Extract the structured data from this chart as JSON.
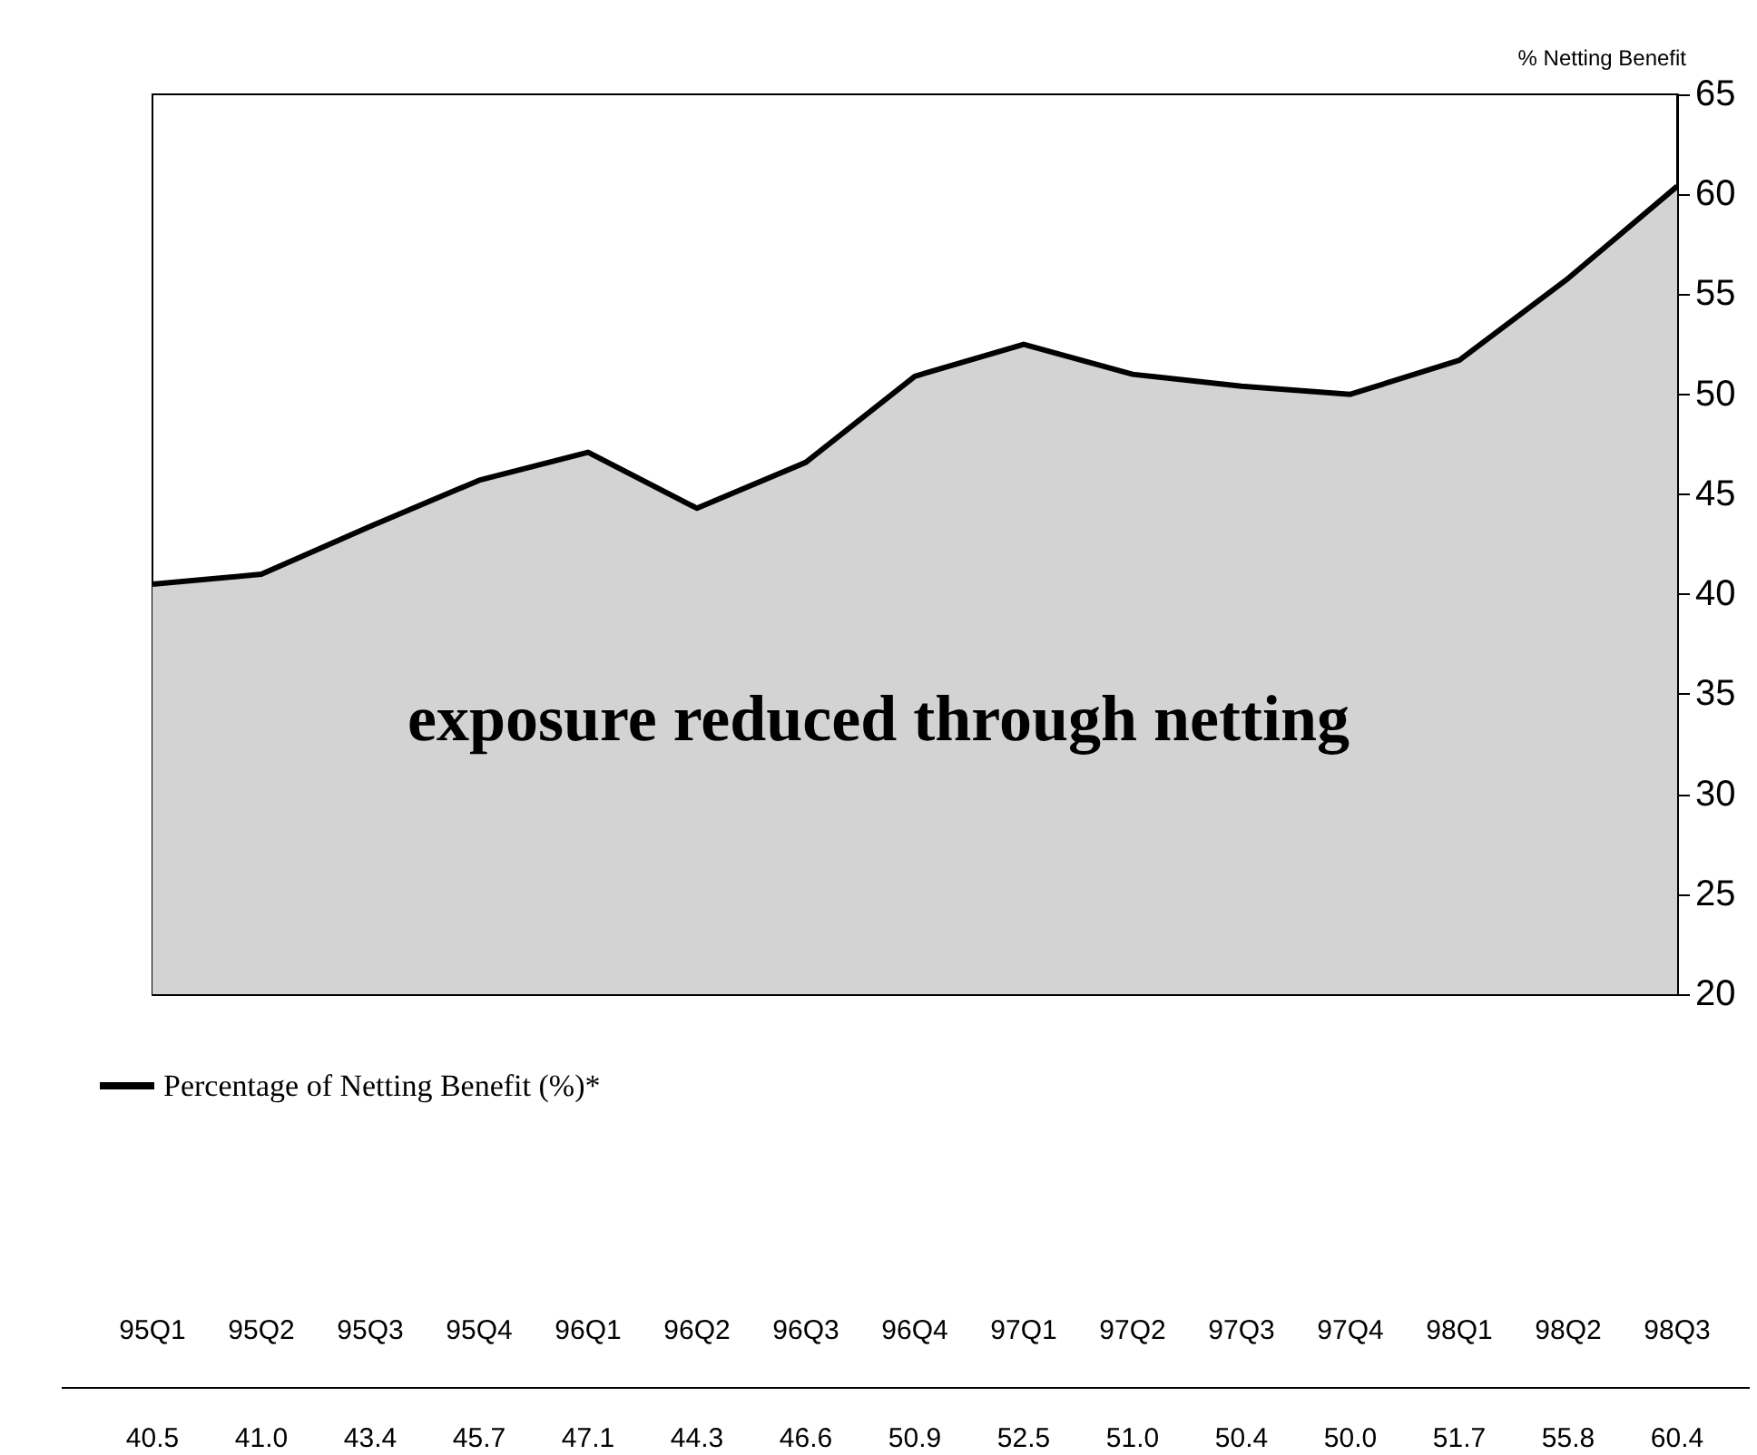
{
  "chart_data": {
    "type": "area",
    "categories": [
      "95Q1",
      "95Q2",
      "95Q3",
      "95Q4",
      "96Q1",
      "96Q2",
      "96Q3",
      "96Q4",
      "97Q1",
      "97Q2",
      "97Q3",
      "97Q4",
      "98Q1",
      "98Q2",
      "98Q3"
    ],
    "series": [
      {
        "name": "Percentage of Netting Benefit (%)*",
        "color": "#000000",
        "axis": "y2",
        "values": [
          40.5,
          41.0,
          43.4,
          45.7,
          47.1,
          44.3,
          46.6,
          50.9,
          52.5,
          51.0,
          50.4,
          50.0,
          51.7,
          55.8,
          60.4
        ],
        "value_labels": [
          "40.5",
          "41.0",
          "43.4",
          "45.7",
          "47.1",
          "44.3",
          "46.6",
          "50.9",
          "52.5",
          "51.0",
          "50.4",
          "50.0",
          "51.7",
          "55.8",
          "60.4"
        ]
      }
    ],
    "y2lim": [
      20,
      65
    ],
    "y2ticks": [
      20,
      25,
      30,
      35,
      40,
      45,
      50,
      55,
      60,
      65
    ],
    "annotations": [
      "exposure reduced through netting"
    ],
    "y2label": "% Netting Benefit",
    "legend": "bottom left",
    "grid": false,
    "marker": "none"
  }
}
